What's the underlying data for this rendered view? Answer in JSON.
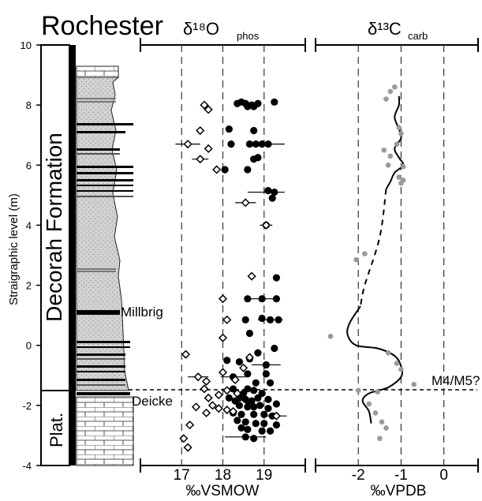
{
  "title": "Rochester",
  "y_axis": {
    "label": "Straigraphic level (m)",
    "range": [
      -4,
      10
    ],
    "ticks": [
      10,
      8,
      6,
      4,
      2,
      0,
      -2,
      -4
    ]
  },
  "column": {
    "formation_label": "Decorah Formation",
    "plat_label": "Plat.",
    "beds": [
      "Millbrig",
      "Deicke"
    ]
  },
  "marker_line": {
    "label": "M4/M5?",
    "level": -1.55
  },
  "chart_data": [
    {
      "type": "scatter",
      "title_main": "δ¹⁸O",
      "title_sub": "phos",
      "xlabel": "‰VSMOW",
      "xlim": [
        16.0,
        20.0
      ],
      "xticks": [
        "17",
        "18",
        "19"
      ],
      "gridlines": [
        17,
        18,
        19
      ],
      "series": [
        {
          "marker": "filled-circle",
          "points": [
            [
              18.35,
              8.05
            ],
            [
              18.45,
              8.1
            ],
            [
              18.55,
              8.05
            ],
            [
              18.7,
              8.0
            ],
            [
              18.85,
              8.05
            ],
            [
              19.25,
              8.1
            ],
            [
              18.6,
              7.95
            ],
            [
              18.75,
              7.95
            ],
            [
              18.15,
              7.2
            ],
            [
              18.75,
              7.15
            ],
            [
              18.2,
              6.7
            ],
            [
              18.65,
              6.7
            ],
            [
              18.8,
              6.7
            ],
            [
              18.95,
              6.7
            ],
            [
              19.1,
              6.7
            ],
            [
              18.75,
              6.2
            ],
            [
              18.85,
              6.25
            ],
            [
              18.05,
              5.85
            ],
            [
              18.6,
              5.85
            ],
            [
              19.1,
              5.15
            ],
            [
              19.25,
              5.1
            ],
            [
              19.2,
              4.9
            ],
            [
              19.05,
              4.0
            ],
            [
              19.3,
              2.25
            ],
            [
              19.3,
              1.55
            ],
            [
              18.95,
              1.55
            ],
            [
              18.6,
              1.55
            ],
            [
              19.35,
              0.85
            ],
            [
              19.15,
              0.85
            ],
            [
              18.95,
              0.9
            ],
            [
              18.55,
              0.85
            ],
            [
              18.65,
              0.4
            ],
            [
              19.25,
              -0.1
            ],
            [
              18.85,
              -0.25
            ],
            [
              18.65,
              -0.45
            ],
            [
              18.4,
              -0.55
            ],
            [
              19.05,
              -0.65
            ],
            [
              18.1,
              -0.5
            ],
            [
              18.6,
              -0.95
            ],
            [
              19.05,
              -0.95
            ],
            [
              18.25,
              -1.05
            ],
            [
              18.8,
              -1.25
            ],
            [
              19.15,
              -1.25
            ],
            [
              18.25,
              -1.45
            ],
            [
              18.6,
              -1.45
            ],
            [
              18.75,
              -1.5
            ],
            [
              18.95,
              -1.6
            ],
            [
              18.5,
              -1.6
            ],
            [
              18.15,
              -1.75
            ],
            [
              18.4,
              -1.75
            ],
            [
              18.55,
              -1.8
            ],
            [
              18.7,
              -1.85
            ],
            [
              18.85,
              -1.75
            ],
            [
              19.1,
              -1.8
            ],
            [
              18.3,
              -1.85
            ],
            [
              18.62,
              -1.88
            ],
            [
              18.4,
              -2.0
            ],
            [
              18.6,
              -2.05
            ],
            [
              18.75,
              -2.05
            ],
            [
              18.9,
              -2.0
            ],
            [
              19.1,
              -2.1
            ],
            [
              19.3,
              -1.95
            ],
            [
              18.25,
              -2.25
            ],
            [
              18.45,
              -2.3
            ],
            [
              18.75,
              -2.3
            ],
            [
              19.0,
              -2.3
            ],
            [
              19.2,
              -2.35
            ],
            [
              18.35,
              -2.5
            ],
            [
              18.55,
              -2.55
            ],
            [
              18.8,
              -2.6
            ],
            [
              19.0,
              -2.6
            ],
            [
              19.3,
              -2.65
            ],
            [
              18.45,
              -2.75
            ],
            [
              18.6,
              -2.8
            ],
            [
              18.95,
              -2.85
            ],
            [
              19.15,
              -2.85
            ],
            [
              18.55,
              -3.05
            ],
            [
              18.75,
              -3.1
            ]
          ],
          "error_bars": [
            [
              19.1,
              6.7,
              0.4
            ],
            [
              19.05,
              5.1,
              0.45
            ],
            [
              19.05,
              4.0,
              0.15
            ],
            [
              18.95,
              1.55,
              0.4
            ],
            [
              19.15,
              0.85,
              0.3
            ],
            [
              19.05,
              -0.65,
              0.35
            ],
            [
              18.25,
              -1.05,
              0.3
            ],
            [
              18.55,
              -3.05,
              0.5
            ]
          ]
        },
        {
          "marker": "open-diamond",
          "points": [
            [
              17.55,
              8.0
            ],
            [
              17.65,
              7.85
            ],
            [
              17.45,
              7.15
            ],
            [
              17.15,
              6.7
            ],
            [
              17.65,
              6.55
            ],
            [
              17.45,
              6.2
            ],
            [
              17.85,
              5.85
            ],
            [
              18.55,
              4.75
            ],
            [
              19.05,
              4.0
            ],
            [
              18.7,
              2.3
            ],
            [
              18.0,
              1.55
            ],
            [
              18.1,
              0.85
            ],
            [
              18.0,
              0.25
            ],
            [
              17.1,
              -0.3
            ],
            [
              18.65,
              -0.4
            ],
            [
              18.5,
              -0.75
            ],
            [
              18.0,
              -0.9
            ],
            [
              17.4,
              -1.05
            ],
            [
              18.3,
              -1.15
            ],
            [
              17.6,
              -1.2
            ],
            [
              17.55,
              -1.45
            ],
            [
              17.9,
              -1.65
            ],
            [
              17.65,
              -1.75
            ],
            [
              18.1,
              -1.5
            ],
            [
              18.35,
              -1.6
            ],
            [
              17.75,
              -2.0
            ],
            [
              17.35,
              -2.05
            ],
            [
              17.9,
              -2.1
            ],
            [
              18.1,
              -2.15
            ],
            [
              18.25,
              -2.2
            ],
            [
              17.6,
              -2.25
            ],
            [
              19.3,
              -2.35
            ],
            [
              17.2,
              -2.65
            ],
            [
              17.05,
              -3.1
            ],
            [
              17.15,
              -3.4
            ]
          ],
          "error_bars": [
            [
              17.15,
              6.7,
              0.3
            ],
            [
              17.45,
              6.2,
              0.2
            ],
            [
              18.55,
              4.75,
              0.25
            ],
            [
              17.4,
              -1.05,
              0.25
            ],
            [
              19.3,
              -2.35,
              0.25
            ]
          ]
        }
      ]
    },
    {
      "type": "scatter",
      "title_main": "δ¹³C",
      "title_sub": "carb",
      "xlabel": "‰VPDB",
      "xlim": [
        -3.0,
        0.8
      ],
      "xticks": [
        "-2",
        "-1",
        "0"
      ],
      "gridlines": [
        -2,
        -1,
        0
      ],
      "series": [
        {
          "marker": "grey-dot",
          "points": [
            [
              -1.15,
              8.6
            ],
            [
              -1.25,
              8.45
            ],
            [
              -1.35,
              8.2
            ],
            [
              -1.05,
              7.25
            ],
            [
              -1.0,
              7.05
            ],
            [
              -1.1,
              6.7
            ],
            [
              -1.4,
              6.5
            ],
            [
              -1.25,
              6.3
            ],
            [
              -1.3,
              6.0
            ],
            [
              -0.95,
              5.95
            ],
            [
              -1.05,
              5.6
            ],
            [
              -0.95,
              5.5
            ],
            [
              -1.0,
              5.4
            ],
            [
              -1.85,
              3.05
            ],
            [
              -2.05,
              2.85
            ],
            [
              -2.65,
              0.3
            ],
            [
              -1.3,
              -0.25
            ],
            [
              -1.1,
              -0.6
            ],
            [
              -1.0,
              -0.8
            ],
            [
              -0.7,
              -1.3
            ],
            [
              -1.55,
              -1.55
            ],
            [
              -2.0,
              -1.5
            ],
            [
              -1.75,
              -1.95
            ],
            [
              -1.6,
              -2.25
            ],
            [
              -1.45,
              -2.55
            ],
            [
              -1.35,
              -2.75
            ],
            [
              -1.5,
              -3.1
            ]
          ]
        }
      ],
      "trend_solid_upper": [
        [
          -1.05,
          8.3
        ],
        [
          -1.05,
          8.0
        ],
        [
          -1.15,
          7.6
        ],
        [
          -1.05,
          7.2
        ],
        [
          -1.0,
          6.9
        ],
        [
          -1.15,
          6.55
        ],
        [
          -1.05,
          6.25
        ],
        [
          -0.95,
          6.0
        ],
        [
          -1.15,
          5.75
        ],
        [
          -1.25,
          5.45
        ],
        [
          -1.35,
          5.2
        ]
      ],
      "trend_dashed": [
        [
          -1.35,
          5.2
        ],
        [
          -1.5,
          3.6
        ],
        [
          -1.85,
          2.0
        ],
        [
          -1.95,
          1.3
        ]
      ],
      "trend_solid_lower": [
        [
          -1.95,
          1.3
        ],
        [
          -2.2,
          0.75
        ],
        [
          -2.25,
          0.35
        ],
        [
          -2.05,
          0.0
        ],
        [
          -1.55,
          -0.1
        ],
        [
          -1.15,
          -0.35
        ],
        [
          -1.0,
          -0.7
        ],
        [
          -1.0,
          -1.05
        ],
        [
          -1.3,
          -1.4
        ],
        [
          -1.75,
          -1.6
        ],
        [
          -1.9,
          -1.85
        ],
        [
          -1.75,
          -2.2
        ],
        [
          -1.7,
          -2.6
        ]
      ]
    }
  ]
}
